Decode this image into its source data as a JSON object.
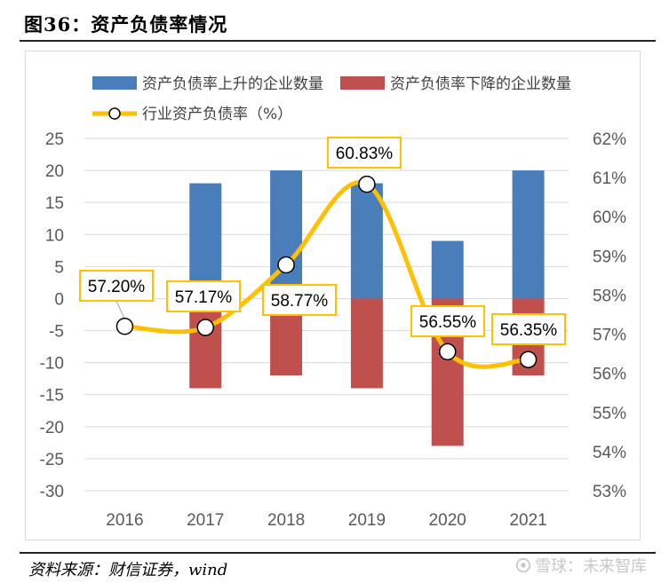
{
  "figure": {
    "title": "图36：资产负债率情况",
    "source": "资料来源：财信证券，wind",
    "watermark": "雪球：未来智库",
    "watermark_icon": "snowball-logo-icon"
  },
  "colors": {
    "up_bar": "#4a7ebb",
    "down_bar": "#c0504d",
    "line": "#ffc000",
    "label_border": "#ffc000",
    "gridline": "#d9d9d9",
    "axis_text": "#595959"
  },
  "chart_data": {
    "type": "bar+line",
    "categories": [
      "2016",
      "2017",
      "2018",
      "2019",
      "2020",
      "2021"
    ],
    "series": [
      {
        "name": "资产负债率上升的企业数量",
        "type": "bar",
        "axis": "left",
        "values": [
          0,
          18,
          20,
          18,
          9,
          20
        ]
      },
      {
        "name": "资产负债率下降的企业数量",
        "type": "bar",
        "axis": "left",
        "values": [
          0,
          -14,
          -12,
          -14,
          -23,
          -12
        ]
      },
      {
        "name": "行业资产负债率（%）",
        "type": "line",
        "axis": "right",
        "values": [
          57.2,
          57.17,
          58.77,
          60.83,
          56.55,
          56.35
        ],
        "labels": [
          "57.20%",
          "57.17%",
          "58.77%",
          "60.83%",
          "56.55%",
          "56.35%"
        ]
      }
    ],
    "left_axis": {
      "min": -30,
      "max": 25,
      "step": 5,
      "ticks": [
        "25",
        "20",
        "15",
        "10",
        "5",
        "0",
        "-5",
        "-10",
        "-15",
        "-20",
        "-25",
        "-30"
      ]
    },
    "right_axis": {
      "min": 53,
      "max": 62,
      "step": 1,
      "ticks": [
        "62%",
        "61%",
        "60%",
        "59%",
        "58%",
        "57%",
        "56%",
        "55%",
        "54%",
        "53%"
      ]
    },
    "legend_position": "top",
    "grid": true
  }
}
